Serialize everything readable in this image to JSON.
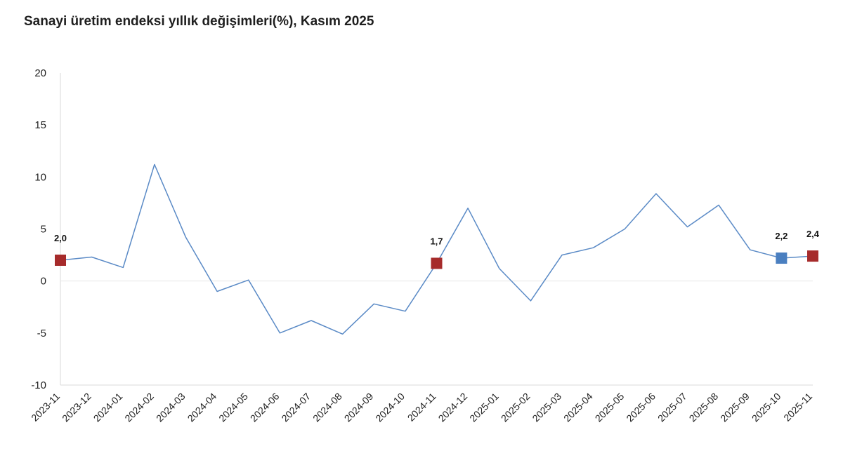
{
  "title": "Sanayi üretim endeksi yıllık değişimleri(%), Kasım 2025",
  "chart_data": {
    "type": "line",
    "title": "Sanayi üretim endeksi yıllık değişimleri(%), Kasım 2025",
    "xlabel": "",
    "ylabel": "",
    "ylim": [
      -10,
      20
    ],
    "yticks": [
      -10,
      -5,
      0,
      5,
      10,
      15,
      20
    ],
    "grid": false,
    "categories": [
      "2023-11",
      "2023-12",
      "2024-01",
      "2024-02",
      "2024-03",
      "2024-04",
      "2024-05",
      "2024-06",
      "2024-07",
      "2024-08",
      "2024-09",
      "2024-10",
      "2024-11",
      "2024-12",
      "2025-01",
      "2025-02",
      "2025-03",
      "2025-04",
      "2025-05",
      "2025-06",
      "2025-07",
      "2025-08",
      "2025-09",
      "2025-10",
      "2025-11"
    ],
    "series": [
      {
        "values": [
          2.0,
          2.3,
          1.3,
          11.2,
          4.2,
          -1.0,
          0.1,
          -5.0,
          -3.8,
          -5.1,
          -2.2,
          -2.9,
          1.7,
          7.0,
          1.2,
          -1.9,
          2.5,
          3.2,
          5.0,
          8.4,
          5.2,
          7.3,
          3.0,
          2.2,
          2.4
        ],
        "color": "#5a8ac6"
      }
    ],
    "highlights": [
      {
        "index": 0,
        "label": "2,0",
        "color": "#a62b2b"
      },
      {
        "index": 12,
        "label": "1,7",
        "color": "#a62b2b"
      },
      {
        "index": 23,
        "label": "2,2",
        "color": "#4a7fc0"
      },
      {
        "index": 24,
        "label": "2,4",
        "color": "#a62b2b"
      }
    ]
  }
}
